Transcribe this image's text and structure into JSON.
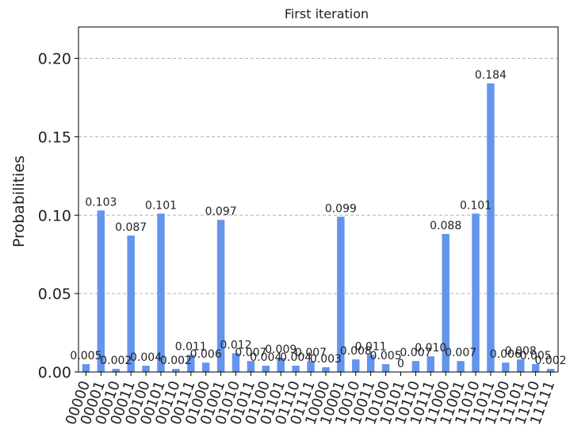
{
  "chart_data": {
    "type": "bar",
    "title": "First iteration",
    "xlabel": "",
    "ylabel": "Probabilities",
    "ylim": [
      0,
      0.22
    ],
    "yticks": [
      "0.00",
      "0.05",
      "0.10",
      "0.15",
      "0.20"
    ],
    "grid": "horizontal dashed",
    "bar_color": "#6495ED",
    "categories": [
      "00000",
      "00001",
      "00010",
      "00011",
      "00100",
      "00101",
      "00110",
      "00111",
      "01000",
      "01001",
      "01010",
      "01011",
      "01100",
      "01101",
      "01110",
      "01111",
      "10000",
      "10001",
      "10010",
      "10011",
      "10100",
      "10101",
      "10110",
      "10111",
      "11000",
      "11001",
      "11010",
      "11011",
      "11100",
      "11101",
      "11110",
      "11111"
    ],
    "values": [
      0.005,
      0.103,
      0.002,
      0.087,
      0.004,
      0.101,
      0.002,
      0.011,
      0.006,
      0.097,
      0.012,
      0.007,
      0.004,
      0.009,
      0.004,
      0.007,
      0.003,
      0.099,
      0.008,
      0.011,
      0.005,
      0,
      0.007,
      0.01,
      0.088,
      0.007,
      0.101,
      0.184,
      0.006,
      0.008,
      0.005,
      0.002
    ],
    "value_labels": [
      "0.005",
      "0.103",
      "0.002",
      "0.087",
      "0.004",
      "0.101",
      "0.002",
      "0.011",
      "0.006",
      "0.097",
      "0.012",
      "0.007",
      "0.004",
      "0.009",
      "0.004",
      "0.007",
      "0.003",
      "0.099",
      "0.008",
      "0.011",
      "0.005",
      "0",
      "0.007",
      "0.010",
      "0.088",
      "0.007",
      "0.101",
      "0.184",
      "0.006",
      "0.008",
      "0.005",
      "0.002"
    ]
  }
}
